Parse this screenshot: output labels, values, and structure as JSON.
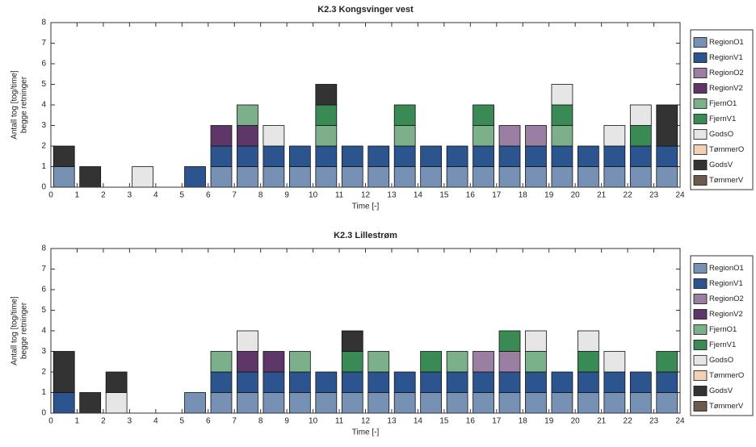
{
  "chart_data": [
    {
      "type": "bar",
      "stacked": true,
      "title": "K2.3 Kongsvinger vest",
      "xlabel": "Time [-]",
      "ylabel": [
        "Antall tog [tog/time]",
        "begge retninger"
      ],
      "x": [
        0.5,
        1.5,
        2.5,
        3.5,
        4.5,
        5.5,
        6.5,
        7.5,
        8.5,
        9.5,
        10.5,
        11.5,
        12.5,
        13.5,
        14.5,
        15.5,
        16.5,
        17.5,
        18.5,
        19.5,
        20.5,
        21.5,
        22.5,
        23.5
      ],
      "xlim": [
        0,
        24
      ],
      "xticks": [
        0,
        1,
        2,
        3,
        4,
        5,
        6,
        7,
        8,
        9,
        10,
        11,
        12,
        13,
        14,
        15,
        16,
        17,
        18,
        19,
        20,
        21,
        22,
        23,
        24
      ],
      "ylim": [
        0,
        8
      ],
      "yticks": [
        0,
        1,
        2,
        3,
        4,
        5,
        6,
        7,
        8
      ],
      "legend": "right-outside",
      "series": [
        {
          "name": "RegionO1",
          "color": "#7791b5",
          "values": [
            1,
            0,
            0,
            0,
            0,
            0,
            1,
            1,
            1,
            1,
            1,
            1,
            1,
            1,
            1,
            1,
            1,
            1,
            1,
            1,
            1,
            1,
            1,
            1
          ]
        },
        {
          "name": "RegionV1",
          "color": "#2c5590",
          "values": [
            0,
            0,
            0,
            0,
            0,
            1,
            1,
            1,
            1,
            1,
            1,
            1,
            1,
            1,
            1,
            1,
            1,
            1,
            1,
            1,
            1,
            1,
            1,
            1
          ]
        },
        {
          "name": "RegionO2",
          "color": "#9a7fa2",
          "values": [
            0,
            0,
            0,
            0,
            0,
            0,
            0,
            0,
            0,
            0,
            0,
            0,
            0,
            0,
            0,
            0,
            0,
            1,
            1,
            0,
            0,
            0,
            0,
            0
          ]
        },
        {
          "name": "RegionV2",
          "color": "#5e3768",
          "values": [
            0,
            0,
            0,
            0,
            0,
            0,
            1,
            1,
            0,
            0,
            0,
            0,
            0,
            0,
            0,
            0,
            0,
            0,
            0,
            0,
            0,
            0,
            0,
            0
          ]
        },
        {
          "name": "FjernO1",
          "color": "#7cb08b",
          "values": [
            0,
            0,
            0,
            0,
            0,
            0,
            0,
            1,
            0,
            0,
            1,
            0,
            0,
            1,
            0,
            0,
            1,
            0,
            0,
            1,
            0,
            0,
            0,
            0
          ]
        },
        {
          "name": "FjernV1",
          "color": "#3a8a56",
          "values": [
            0,
            0,
            0,
            0,
            0,
            0,
            0,
            0,
            0,
            0,
            1,
            0,
            0,
            1,
            0,
            0,
            1,
            0,
            0,
            1,
            0,
            0,
            1,
            0
          ]
        },
        {
          "name": "GodsO",
          "color": "#e6e6e6",
          "values": [
            0,
            0,
            0,
            1,
            0,
            0,
            0,
            0,
            1,
            0,
            0,
            0,
            0,
            0,
            0,
            0,
            0,
            0,
            0,
            1,
            0,
            1,
            1,
            0
          ]
        },
        {
          "name": "TømmerO",
          "color": "#f3cfb3",
          "values": [
            0,
            0,
            0,
            0,
            0,
            0,
            0,
            0,
            0,
            0,
            0,
            0,
            0,
            0,
            0,
            0,
            0,
            0,
            0,
            0,
            0,
            0,
            0,
            0
          ]
        },
        {
          "name": "GodsV",
          "color": "#333333",
          "values": [
            1,
            1,
            0,
            0,
            0,
            0,
            0,
            0,
            0,
            0,
            1,
            0,
            0,
            0,
            0,
            0,
            0,
            0,
            0,
            0,
            0,
            0,
            0,
            2
          ]
        },
        {
          "name": "TømmerV",
          "color": "#6b5b4f",
          "values": [
            0,
            0,
            0,
            0,
            0,
            0,
            0,
            0,
            0,
            0,
            0,
            0,
            0,
            0,
            0,
            0,
            0,
            0,
            0,
            0,
            0,
            0,
            0,
            0
          ]
        }
      ]
    },
    {
      "type": "bar",
      "stacked": true,
      "title": "K2.3 Lillestrøm",
      "xlabel": "Time [-]",
      "ylabel": [
        "Antall tog [tog/time]",
        "begge retninger"
      ],
      "x": [
        0.5,
        1.5,
        2.5,
        3.5,
        4.5,
        5.5,
        6.5,
        7.5,
        8.5,
        9.5,
        10.5,
        11.5,
        12.5,
        13.5,
        14.5,
        15.5,
        16.5,
        17.5,
        18.5,
        19.5,
        20.5,
        21.5,
        22.5,
        23.5
      ],
      "xlim": [
        0,
        24
      ],
      "xticks": [
        0,
        1,
        2,
        3,
        4,
        5,
        6,
        7,
        8,
        9,
        10,
        11,
        12,
        13,
        14,
        15,
        16,
        17,
        18,
        19,
        20,
        21,
        22,
        23,
        24
      ],
      "ylim": [
        0,
        8
      ],
      "yticks": [
        0,
        1,
        2,
        3,
        4,
        5,
        6,
        7,
        8
      ],
      "legend": "right-outside",
      "series": [
        {
          "name": "RegionO1",
          "color": "#7791b5",
          "values": [
            0,
            0,
            0,
            0,
            0,
            1,
            1,
            1,
            1,
            1,
            1,
            1,
            1,
            1,
            1,
            1,
            1,
            1,
            1,
            1,
            1,
            1,
            1,
            1
          ]
        },
        {
          "name": "RegionV1",
          "color": "#2c5590",
          "values": [
            1,
            0,
            0,
            0,
            0,
            0,
            1,
            1,
            1,
            1,
            1,
            1,
            1,
            1,
            1,
            1,
            1,
            1,
            1,
            1,
            1,
            1,
            1,
            1
          ]
        },
        {
          "name": "RegionO2",
          "color": "#9a7fa2",
          "values": [
            0,
            0,
            0,
            0,
            0,
            0,
            0,
            0,
            0,
            0,
            0,
            0,
            0,
            0,
            0,
            0,
            1,
            1,
            0,
            0,
            0,
            0,
            0,
            0
          ]
        },
        {
          "name": "RegionV2",
          "color": "#5e3768",
          "values": [
            0,
            0,
            0,
            0,
            0,
            0,
            0,
            1,
            1,
            0,
            0,
            0,
            0,
            0,
            0,
            0,
            0,
            0,
            0,
            0,
            0,
            0,
            0,
            0
          ]
        },
        {
          "name": "FjernO1",
          "color": "#7cb08b",
          "values": [
            0,
            0,
            0,
            0,
            0,
            0,
            1,
            0,
            0,
            1,
            0,
            0,
            1,
            0,
            0,
            1,
            0,
            0,
            1,
            0,
            0,
            0,
            0,
            0
          ]
        },
        {
          "name": "FjernV1",
          "color": "#3a8a56",
          "values": [
            0,
            0,
            0,
            0,
            0,
            0,
            0,
            0,
            0,
            0,
            0,
            1,
            0,
            0,
            1,
            0,
            0,
            1,
            0,
            0,
            1,
            0,
            0,
            1
          ]
        },
        {
          "name": "GodsO",
          "color": "#e6e6e6",
          "values": [
            0,
            0,
            1,
            0,
            0,
            0,
            0,
            1,
            0,
            0,
            0,
            0,
            0,
            0,
            0,
            0,
            0,
            0,
            1,
            0,
            1,
            1,
            0,
            0
          ]
        },
        {
          "name": "TømmerO",
          "color": "#f3cfb3",
          "values": [
            0,
            0,
            0,
            0,
            0,
            0,
            0,
            0,
            0,
            0,
            0,
            0,
            0,
            0,
            0,
            0,
            0,
            0,
            0,
            0,
            0,
            0,
            0,
            0
          ]
        },
        {
          "name": "GodsV",
          "color": "#333333",
          "values": [
            2,
            1,
            1,
            0,
            0,
            0,
            0,
            0,
            0,
            0,
            0,
            1,
            0,
            0,
            0,
            0,
            0,
            0,
            0,
            0,
            0,
            0,
            0,
            0
          ]
        },
        {
          "name": "TømmerV",
          "color": "#6b5b4f",
          "values": [
            0,
            0,
            0,
            0,
            0,
            0,
            0,
            0,
            0,
            0,
            0,
            0,
            0,
            0,
            0,
            0,
            0,
            0,
            0,
            0,
            0,
            0,
            0,
            0
          ]
        }
      ]
    }
  ]
}
